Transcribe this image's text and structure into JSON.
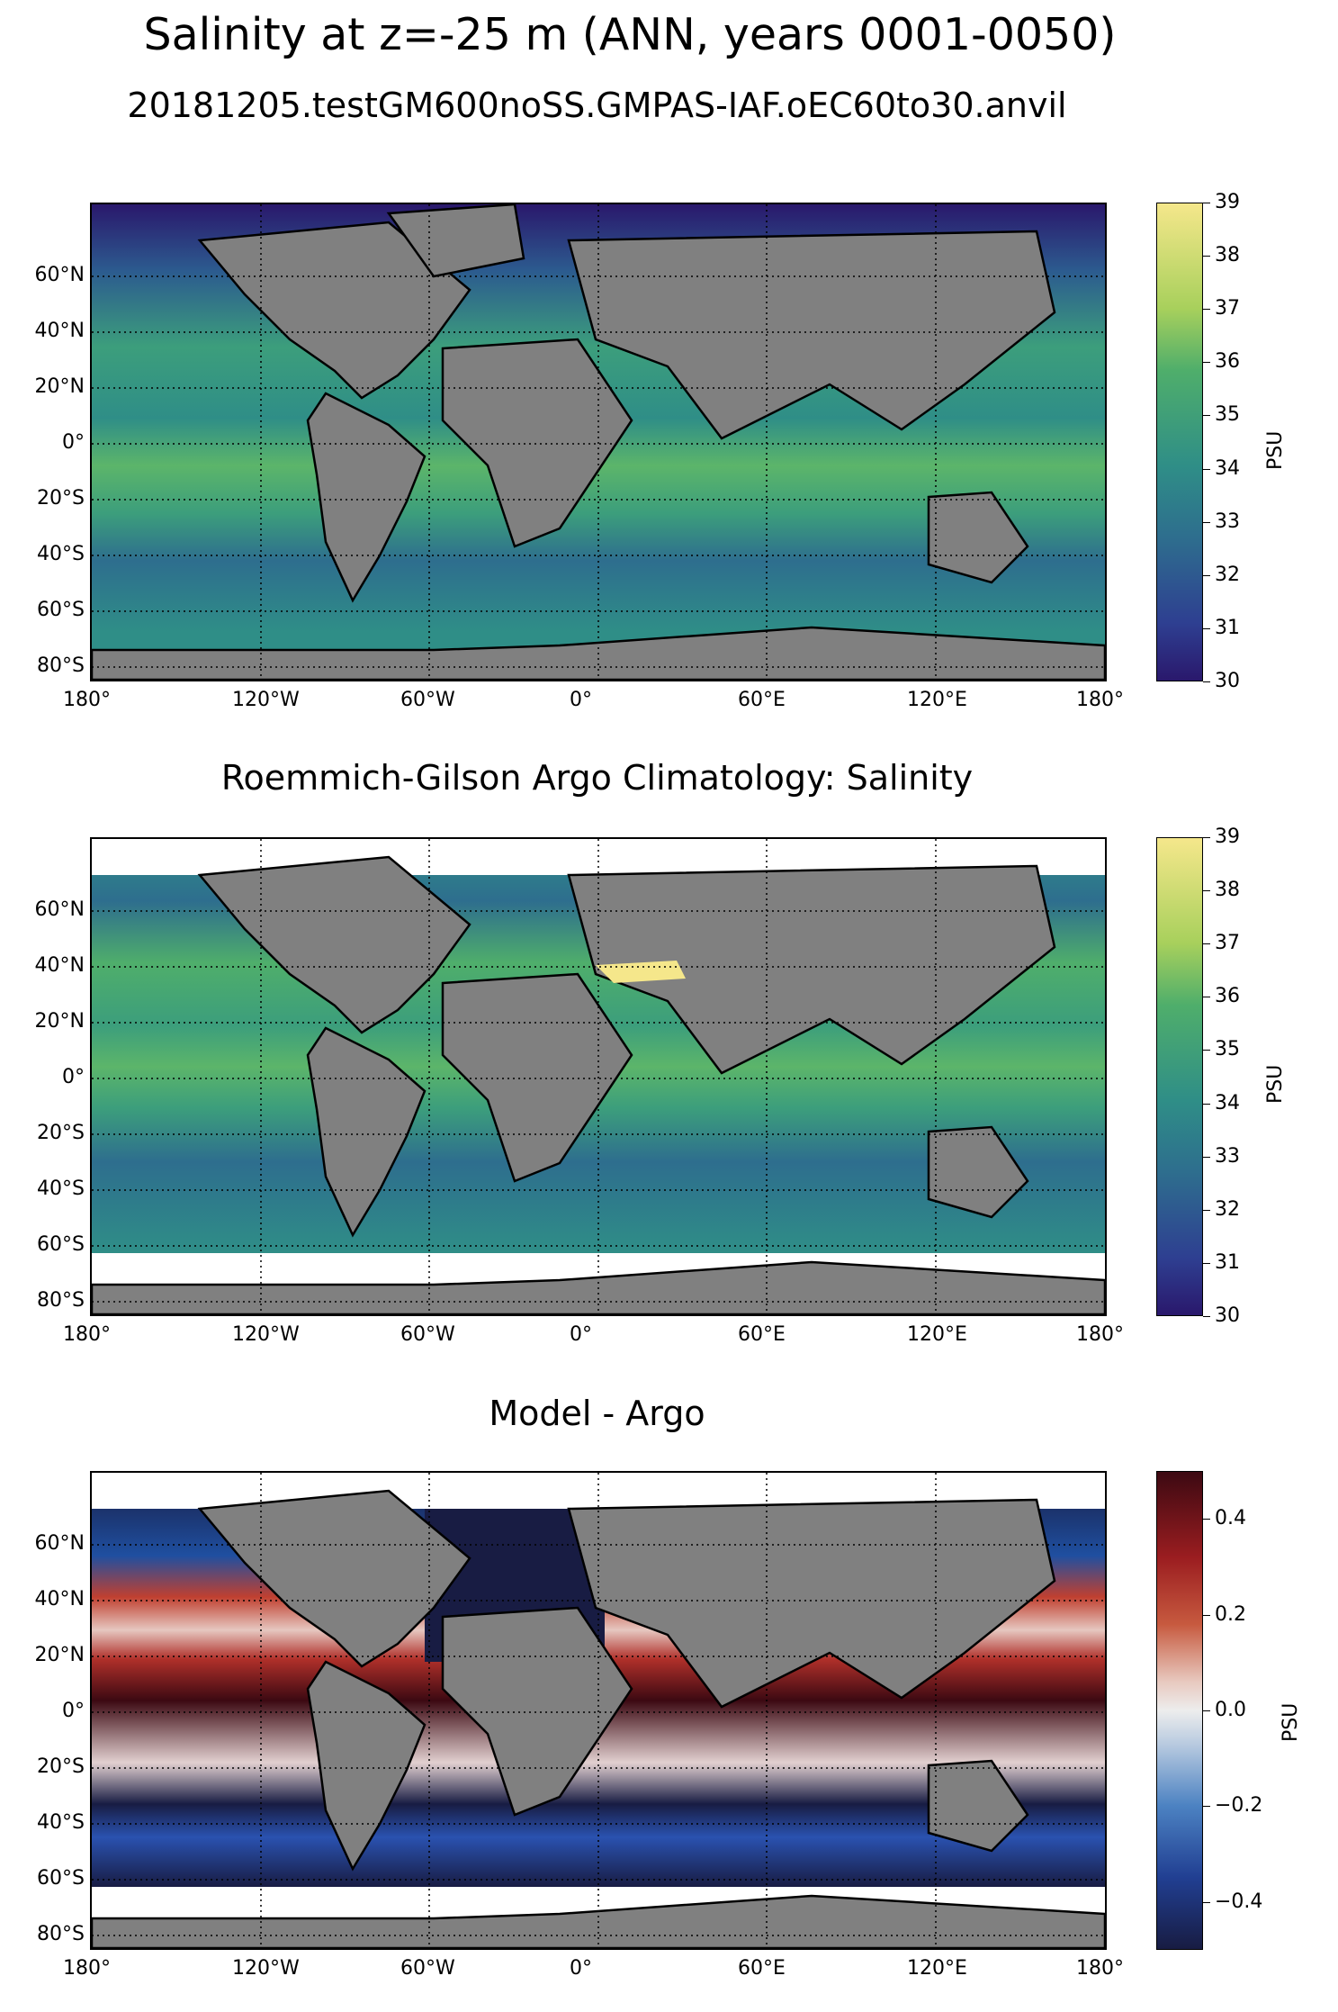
{
  "figure": {
    "title": "Salinity at z=-25 m (ANN, years 0001-0050)"
  },
  "panels": [
    {
      "title": "20181205.testGM600noSS.GMPAS-IAF.oEC60to30.anvil",
      "colorbar": {
        "label": "PSU",
        "ticks": [
          "39",
          "38",
          "37",
          "36",
          "35",
          "34",
          "33",
          "32",
          "31",
          "30"
        ],
        "colormap": "haline",
        "min": 30,
        "max": 39
      }
    },
    {
      "title": "Roemmich-Gilson Argo Climatology: Salinity",
      "colorbar": {
        "label": "PSU",
        "ticks": [
          "39",
          "38",
          "37",
          "36",
          "35",
          "34",
          "33",
          "32",
          "31",
          "30"
        ],
        "colormap": "haline",
        "min": 30,
        "max": 39
      }
    },
    {
      "title": "Model - Argo",
      "colorbar": {
        "label": "PSU",
        "ticks": [
          "0.4",
          "0.2",
          "0.0",
          "−0.2",
          "−0.4"
        ],
        "colormap": "balance",
        "min": -0.5,
        "max": 0.5
      }
    }
  ],
  "axes": {
    "lat_ticks": [
      "60°N",
      "40°N",
      "20°N",
      "0°",
      "20°S",
      "40°S",
      "60°S",
      "80°S"
    ],
    "lon_ticks": [
      "180°",
      "120°W",
      "60°W",
      "0°",
      "60°E",
      "120°E",
      "180°"
    ]
  },
  "colors": {
    "land": "#808080",
    "haline_top": "#f5e78b",
    "haline_bottom": "#2a186c",
    "balance_top": "#3c0912",
    "balance_bottom": "#181c43"
  }
}
